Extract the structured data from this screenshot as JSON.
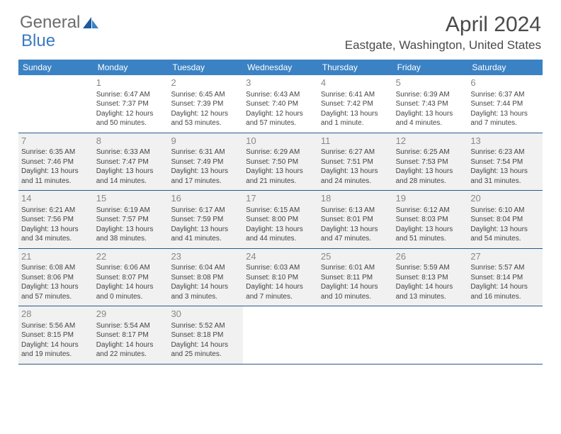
{
  "logo": {
    "text1": "General",
    "text2": "Blue"
  },
  "title": "April 2024",
  "location": "Eastgate, Washington, United States",
  "colors": {
    "header_bg": "#3b82c4",
    "header_text": "#ffffff",
    "border": "#2a5a8a",
    "shade": "#f1f1f1",
    "logo_gray": "#6b6b6b",
    "logo_blue": "#3b7bbf",
    "daynum": "#888888",
    "body_text": "#444444"
  },
  "day_names": [
    "Sunday",
    "Monday",
    "Tuesday",
    "Wednesday",
    "Thursday",
    "Friday",
    "Saturday"
  ],
  "weeks": [
    [
      {
        "blank": true,
        "shade": false
      },
      {
        "n": "1",
        "sr": "Sunrise: 6:47 AM",
        "ss": "Sunset: 7:37 PM",
        "dl": "Daylight: 12 hours and 50 minutes.",
        "shade": false
      },
      {
        "n": "2",
        "sr": "Sunrise: 6:45 AM",
        "ss": "Sunset: 7:39 PM",
        "dl": "Daylight: 12 hours and 53 minutes.",
        "shade": false
      },
      {
        "n": "3",
        "sr": "Sunrise: 6:43 AM",
        "ss": "Sunset: 7:40 PM",
        "dl": "Daylight: 12 hours and 57 minutes.",
        "shade": false
      },
      {
        "n": "4",
        "sr": "Sunrise: 6:41 AM",
        "ss": "Sunset: 7:42 PM",
        "dl": "Daylight: 13 hours and 1 minute.",
        "shade": false
      },
      {
        "n": "5",
        "sr": "Sunrise: 6:39 AM",
        "ss": "Sunset: 7:43 PM",
        "dl": "Daylight: 13 hours and 4 minutes.",
        "shade": false
      },
      {
        "n": "6",
        "sr": "Sunrise: 6:37 AM",
        "ss": "Sunset: 7:44 PM",
        "dl": "Daylight: 13 hours and 7 minutes.",
        "shade": false
      }
    ],
    [
      {
        "n": "7",
        "sr": "Sunrise: 6:35 AM",
        "ss": "Sunset: 7:46 PM",
        "dl": "Daylight: 13 hours and 11 minutes.",
        "shade": true
      },
      {
        "n": "8",
        "sr": "Sunrise: 6:33 AM",
        "ss": "Sunset: 7:47 PM",
        "dl": "Daylight: 13 hours and 14 minutes.",
        "shade": true
      },
      {
        "n": "9",
        "sr": "Sunrise: 6:31 AM",
        "ss": "Sunset: 7:49 PM",
        "dl": "Daylight: 13 hours and 17 minutes.",
        "shade": true
      },
      {
        "n": "10",
        "sr": "Sunrise: 6:29 AM",
        "ss": "Sunset: 7:50 PM",
        "dl": "Daylight: 13 hours and 21 minutes.",
        "shade": true
      },
      {
        "n": "11",
        "sr": "Sunrise: 6:27 AM",
        "ss": "Sunset: 7:51 PM",
        "dl": "Daylight: 13 hours and 24 minutes.",
        "shade": true
      },
      {
        "n": "12",
        "sr": "Sunrise: 6:25 AM",
        "ss": "Sunset: 7:53 PM",
        "dl": "Daylight: 13 hours and 28 minutes.",
        "shade": true
      },
      {
        "n": "13",
        "sr": "Sunrise: 6:23 AM",
        "ss": "Sunset: 7:54 PM",
        "dl": "Daylight: 13 hours and 31 minutes.",
        "shade": true
      }
    ],
    [
      {
        "n": "14",
        "sr": "Sunrise: 6:21 AM",
        "ss": "Sunset: 7:56 PM",
        "dl": "Daylight: 13 hours and 34 minutes.",
        "shade": true
      },
      {
        "n": "15",
        "sr": "Sunrise: 6:19 AM",
        "ss": "Sunset: 7:57 PM",
        "dl": "Daylight: 13 hours and 38 minutes.",
        "shade": true
      },
      {
        "n": "16",
        "sr": "Sunrise: 6:17 AM",
        "ss": "Sunset: 7:59 PM",
        "dl": "Daylight: 13 hours and 41 minutes.",
        "shade": true
      },
      {
        "n": "17",
        "sr": "Sunrise: 6:15 AM",
        "ss": "Sunset: 8:00 PM",
        "dl": "Daylight: 13 hours and 44 minutes.",
        "shade": true
      },
      {
        "n": "18",
        "sr": "Sunrise: 6:13 AM",
        "ss": "Sunset: 8:01 PM",
        "dl": "Daylight: 13 hours and 47 minutes.",
        "shade": true
      },
      {
        "n": "19",
        "sr": "Sunrise: 6:12 AM",
        "ss": "Sunset: 8:03 PM",
        "dl": "Daylight: 13 hours and 51 minutes.",
        "shade": true
      },
      {
        "n": "20",
        "sr": "Sunrise: 6:10 AM",
        "ss": "Sunset: 8:04 PM",
        "dl": "Daylight: 13 hours and 54 minutes.",
        "shade": true
      }
    ],
    [
      {
        "n": "21",
        "sr": "Sunrise: 6:08 AM",
        "ss": "Sunset: 8:06 PM",
        "dl": "Daylight: 13 hours and 57 minutes.",
        "shade": true
      },
      {
        "n": "22",
        "sr": "Sunrise: 6:06 AM",
        "ss": "Sunset: 8:07 PM",
        "dl": "Daylight: 14 hours and 0 minutes.",
        "shade": true
      },
      {
        "n": "23",
        "sr": "Sunrise: 6:04 AM",
        "ss": "Sunset: 8:08 PM",
        "dl": "Daylight: 14 hours and 3 minutes.",
        "shade": true
      },
      {
        "n": "24",
        "sr": "Sunrise: 6:03 AM",
        "ss": "Sunset: 8:10 PM",
        "dl": "Daylight: 14 hours and 7 minutes.",
        "shade": true
      },
      {
        "n": "25",
        "sr": "Sunrise: 6:01 AM",
        "ss": "Sunset: 8:11 PM",
        "dl": "Daylight: 14 hours and 10 minutes.",
        "shade": true
      },
      {
        "n": "26",
        "sr": "Sunrise: 5:59 AM",
        "ss": "Sunset: 8:13 PM",
        "dl": "Daylight: 14 hours and 13 minutes.",
        "shade": true
      },
      {
        "n": "27",
        "sr": "Sunrise: 5:57 AM",
        "ss": "Sunset: 8:14 PM",
        "dl": "Daylight: 14 hours and 16 minutes.",
        "shade": true
      }
    ],
    [
      {
        "n": "28",
        "sr": "Sunrise: 5:56 AM",
        "ss": "Sunset: 8:15 PM",
        "dl": "Daylight: 14 hours and 19 minutes.",
        "shade": true
      },
      {
        "n": "29",
        "sr": "Sunrise: 5:54 AM",
        "ss": "Sunset: 8:17 PM",
        "dl": "Daylight: 14 hours and 22 minutes.",
        "shade": true
      },
      {
        "n": "30",
        "sr": "Sunrise: 5:52 AM",
        "ss": "Sunset: 8:18 PM",
        "dl": "Daylight: 14 hours and 25 minutes.",
        "shade": true
      },
      {
        "blank": true,
        "shade": false
      },
      {
        "blank": true,
        "shade": false
      },
      {
        "blank": true,
        "shade": false
      },
      {
        "blank": true,
        "shade": false
      }
    ]
  ]
}
